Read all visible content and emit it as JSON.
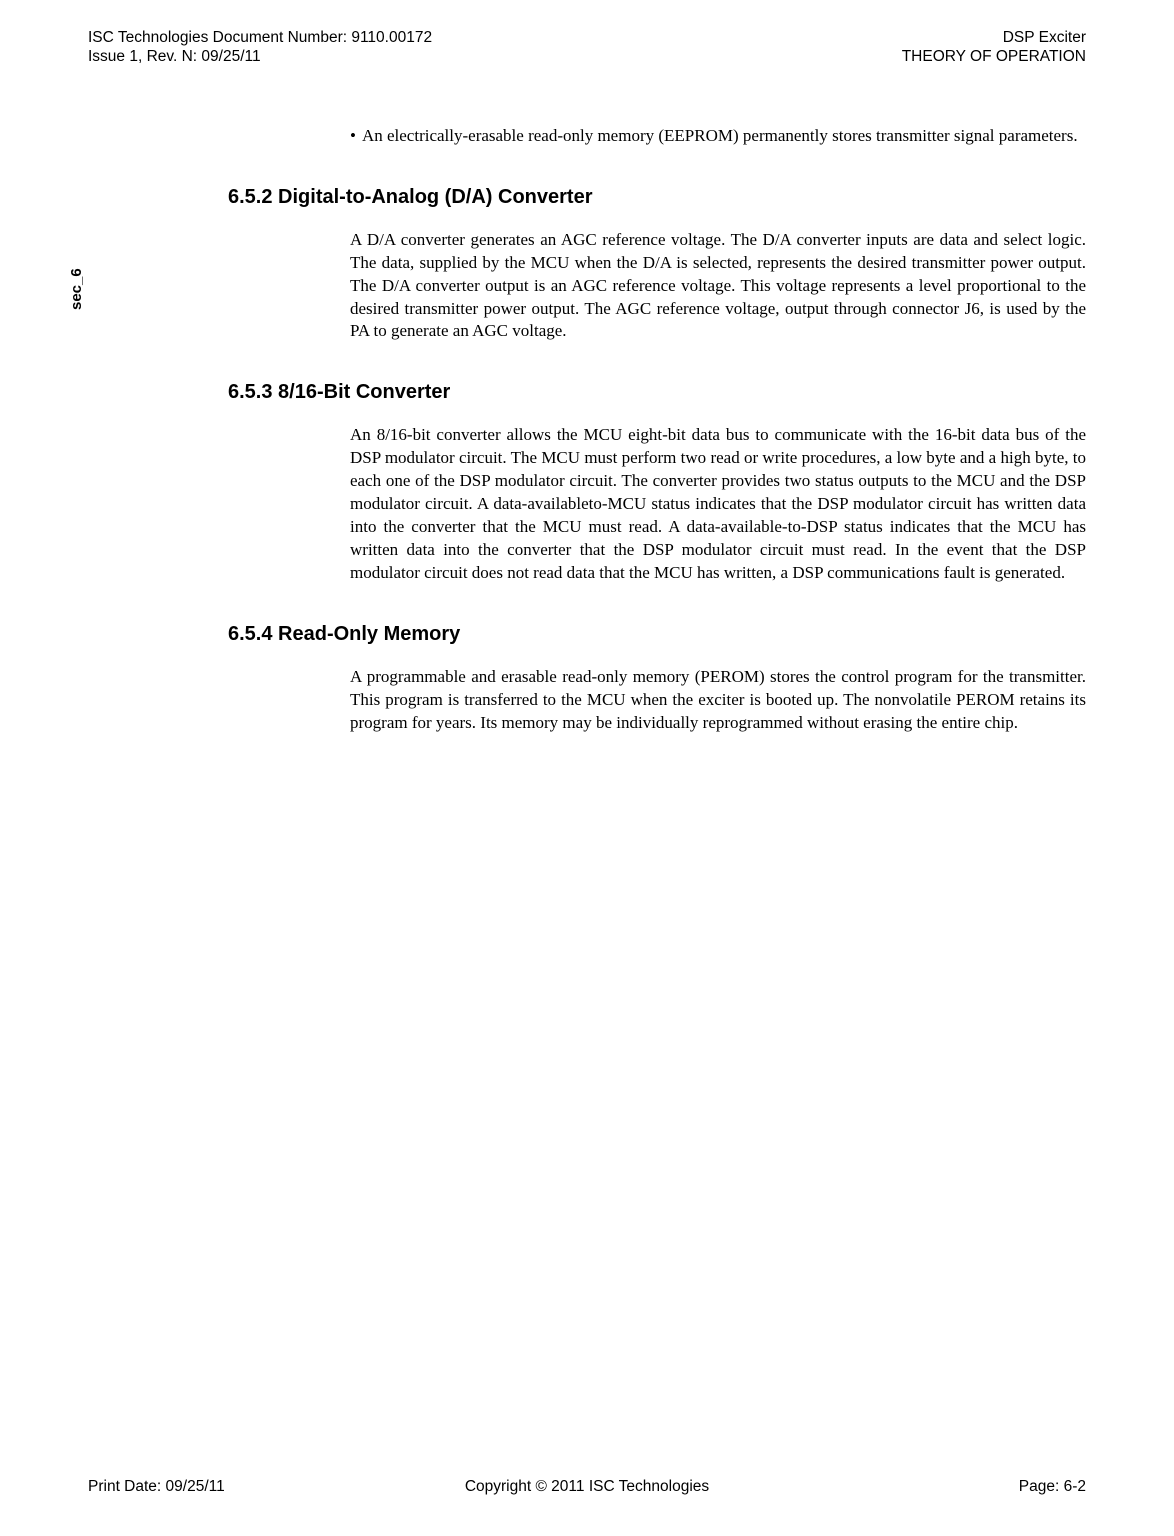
{
  "header": {
    "doc_number_line": "ISC Technologies Document Number: 9110.00172",
    "issue_line": "Issue 1, Rev. N: 09/25/11",
    "product": "DSP Exciter",
    "section_title": "THEORY OF OPERATION"
  },
  "side_label": "sec_6",
  "bullet": {
    "text": "An electrically-erasable read-only memory (EEPROM) permanently stores transmitter signal parameters."
  },
  "sections": {
    "s652": {
      "heading": "6.5.2 Digital-to-Analog (D/A) Converter",
      "body": "A D/A converter generates an AGC reference voltage. The D/A converter inputs are data and select logic. The data, supplied by the MCU when the D/A is selected, represents the desired transmitter power output. The D/A converter output is an AGC reference voltage. This voltage represents a level proportional to the desired transmitter power output. The AGC reference voltage, output through connector J6, is used by the PA to generate an AGC voltage."
    },
    "s653": {
      "heading": "6.5.3 8/16-Bit Converter",
      "body": "An 8/16-bit converter allows the MCU eight-bit data bus to communicate with the 16-bit data bus of the DSP modulator circuit. The MCU must perform two read or write procedures, a low byte and a high byte, to each one of the DSP modulator circuit. The converter provides two status outputs to the MCU and the DSP modulator circuit. A data-availableto-MCU status indicates that the DSP modulator circuit has written data into the converter that the MCU must read. A data-available-to-DSP status indicates that the MCU has written data into the converter that the DSP modulator circuit must read. In the event that the DSP modulator circuit does not read data that the MCU has written, a DSP communications fault is generated."
    },
    "s654": {
      "heading": "6.5.4 Read-Only Memory",
      "body": "A programmable and erasable read-only memory (PEROM) stores the control program for the transmitter. This program is transferred to the MCU when the exciter is booted up. The nonvolatile PEROM retains its program for years. Its memory may be individually reprogrammed without erasing the entire chip."
    }
  },
  "footer": {
    "print_date": "Print Date: 09/25/11",
    "copyright": "Copyright © 2011 ISC Technologies",
    "page": "Page: 6-2"
  }
}
